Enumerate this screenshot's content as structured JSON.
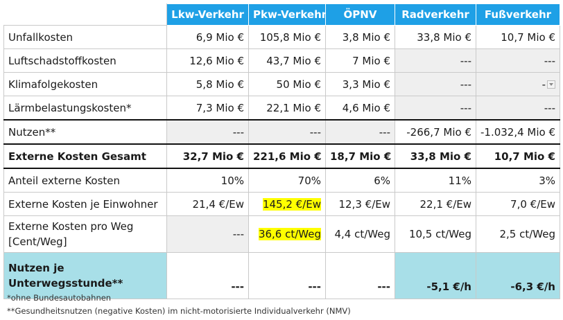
{
  "header": {
    "columns": [
      "Lkw-Verkehr",
      "Pkw-Verkehr",
      "ÖPNV",
      "Radverkehr",
      "Fußverkehr"
    ]
  },
  "rows": [
    {
      "label": "Unfallkosten",
      "cells": [
        "6,9 Mio €",
        "105,8  Mio €",
        "3,8  Mio €",
        "33,8 Mio €",
        "10,7 Mio €"
      ]
    },
    {
      "label": "Luftschadstoffkosten",
      "cells": [
        "12,6  Mio €",
        "43,7  Mio €",
        "7  Mio €",
        "---",
        "---"
      ]
    },
    {
      "label": "Klimafolgekosten",
      "cells": [
        "5,8  Mio €",
        "50  Mio €",
        "3,3  Mio €",
        "---",
        "-"
      ]
    },
    {
      "label": "Lärmbelastungskosten*",
      "cells": [
        "7,3  Mio €",
        "22,1  Mio €",
        "4,6  Mio €",
        "---",
        "---"
      ]
    },
    {
      "label": "Nutzen**",
      "cells": [
        "---",
        "---",
        "---",
        "-266,7  Mio €",
        "-1.032,4  Mio €"
      ]
    },
    {
      "label": "Externe Kosten Gesamt",
      "cells": [
        "32,7 Mio €",
        "221,6 Mio €",
        "18,7 Mio €",
        "33,8 Mio €",
        "10,7 Mio €"
      ]
    },
    {
      "label": "Anteil externe Kosten",
      "cells": [
        "10%",
        "70%",
        "6%",
        "11%",
        "3%"
      ]
    },
    {
      "label": "Externe Kosten je Einwohner",
      "cells": [
        "21,4 €/Ew",
        "145,2 €/Ew",
        "12,3 €/Ew",
        "22,1 €/Ew",
        "7,0 €/Ew"
      ]
    },
    {
      "label": "Externe Kosten pro Weg [Cent/Weg]",
      "cells": [
        "---",
        "36,6 ct/Weg",
        "4,4 ct/Weg",
        "10,5 ct/Weg",
        "2,5 ct/Weg"
      ]
    },
    {
      "label": "Nutzen je Unterwegsstunde**",
      "cells": [
        "---",
        "---",
        "---",
        "-5,1 €/h",
        "-6,3 €/h"
      ]
    }
  ],
  "footnotes": [
    "*ohne Bundesautobahnen",
    "**Gesundheitsnutzen (negative Kosten) im nicht-motorisierte Individualverkehr (NMV)"
  ],
  "colors": {
    "header_blue": "#1ea0e6",
    "highlight_yellow": "#ffff00",
    "teal_cell": "#a8dfe8",
    "grey_cell": "#efefef"
  }
}
